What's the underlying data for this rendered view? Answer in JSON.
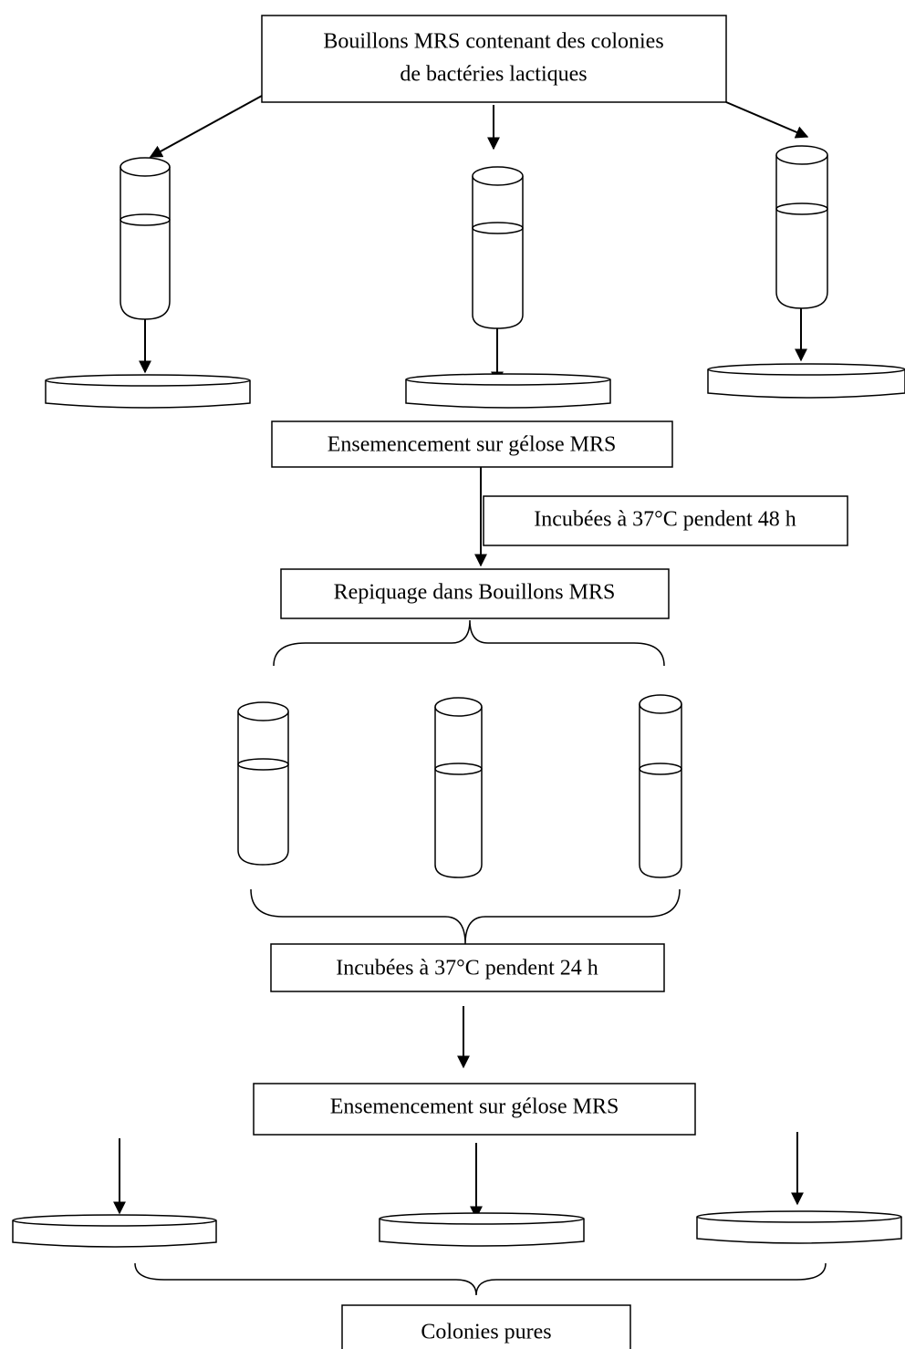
{
  "nodes": [
    {
      "lines": [
        "Bouillons MRS contenant des colonies",
        "de bactéries lactiques"
      ]
    },
    {
      "label": "Ensemencement sur gélose MRS"
    },
    {
      "label": "Incubées à 37°C pendent 48 h"
    },
    {
      "label": "Repiquage dans Bouillons MRS"
    },
    {
      "label": "Incubées à 37°C pendent 24 h"
    },
    {
      "label": "Ensemencement sur gélose MRS"
    },
    {
      "label": "Colonies pures"
    }
  ]
}
